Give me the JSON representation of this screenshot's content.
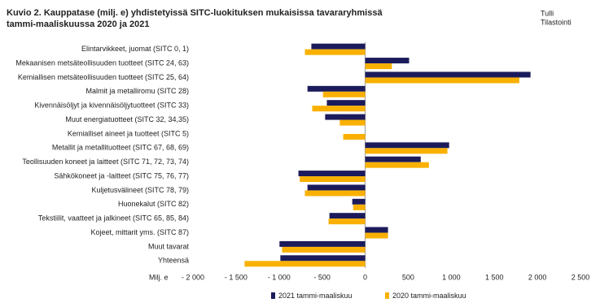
{
  "chart_data": {
    "type": "hbar",
    "title": [
      "Kuvio  2. Kauppatase (milj. e) yhdistetyissä SITC-luokituksen mukaisissa tavararyhmissä",
      "tammi-maaliskuussa 2020 ja 2021"
    ],
    "source": [
      "Tulli",
      "Tilastointi"
    ],
    "x_label": "Milj. e",
    "categories": [
      "Elintarvikkeet, juomat (SITC 0, 1)",
      "Mekaanisen metsäteollisuuden tuotteet (SITC 24, 63)",
      "Kemiallisen metsäteollisuuden tuotteet (SITC 25, 64)",
      "Malmit ja metalliromu (SITC 28)",
      "Kivennäisöljyt ja kivennäisöljytuotteet (SITC 33)",
      "Muut energiatuotteet (SITC 32, 34,35)",
      "Kemialliset aineet ja tuotteet (SITC 5)",
      "Metallit ja metallituotteet (SITC 67, 68, 69)",
      "Teollisuuden koneet ja laitteet (SITC 71, 72, 73, 74)",
      "Sähkökoneet ja -laitteet (SITC 75, 76, 77)",
      "Kuljetusvälineet (SITC 78, 79)",
      "Huonekalut (SITC 82)",
      "Tekstiilit, vaatteet ja jalkineet (SITC 65, 85, 84)",
      "Kojeet, mittarit yms. (SITC 87)",
      "Muut tavarat",
      "Yhteensä"
    ],
    "series": [
      {
        "name": "2021 tammi-maaliskuu",
        "color": "#1b1b5c",
        "values": [
          -625,
          510,
          1920,
          -670,
          -445,
          -465,
          0,
          975,
          645,
          -775,
          -670,
          -150,
          -415,
          265,
          -995,
          -985
        ]
      },
      {
        "name": "2020 tammi-maaliskuu",
        "color": "#f9b000",
        "values": [
          -700,
          310,
          1790,
          -490,
          -615,
          -295,
          -255,
          955,
          740,
          -760,
          -700,
          -140,
          -425,
          265,
          -965,
          -1400
        ]
      }
    ],
    "xlim": [
      -2000,
      2500
    ],
    "xticks": [
      {
        "value": -2000,
        "label": "- 2 000"
      },
      {
        "value": -1500,
        "label": "- 1 500"
      },
      {
        "value": -1000,
        "label": "- 1 000"
      },
      {
        "value": -500,
        "label": "- 500"
      },
      0,
      500,
      {
        "value": 1000,
        "label": "1 000"
      },
      {
        "value": 1500,
        "label": "1 500"
      },
      {
        "value": 2000,
        "label": "2 000"
      },
      {
        "value": 2500,
        "label": "2 500"
      }
    ],
    "grid": false
  }
}
